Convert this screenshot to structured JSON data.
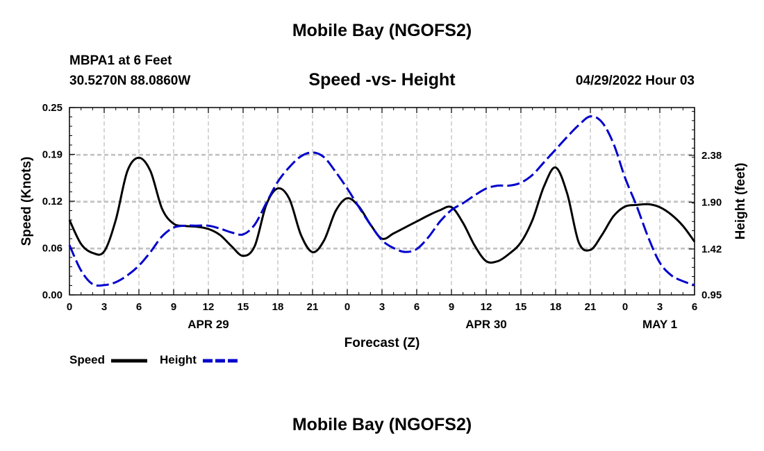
{
  "header": {
    "title": "Mobile Bay (NGOFS2)",
    "station": "MBPA1 at 6 Feet",
    "coordinates": "30.5270N  88.0860W",
    "subtitle": "Speed -vs- Height",
    "datetime": "04/29/2022 Hour 03"
  },
  "footer": {
    "title": "Mobile Bay (NGOFS2)"
  },
  "legend": {
    "speed_label": "Speed",
    "height_label": "Height"
  },
  "colors": {
    "speed": "#000000",
    "height": "#0000cc",
    "grid": "#bbbbbb"
  },
  "chart_data": {
    "type": "line",
    "title": "Speed -vs- Height",
    "xlabel": "Forecast (Z)",
    "ylabel": "Speed (Knots)",
    "y2label": "Height (feet)",
    "x_hours_range": [
      0,
      54
    ],
    "x_ticks": [
      {
        "h": 0,
        "label": "0"
      },
      {
        "h": 3,
        "label": "3"
      },
      {
        "h": 6,
        "label": "6"
      },
      {
        "h": 9,
        "label": "9"
      },
      {
        "h": 12,
        "label": "12"
      },
      {
        "h": 15,
        "label": "15"
      },
      {
        "h": 18,
        "label": "18"
      },
      {
        "h": 21,
        "label": "21"
      },
      {
        "h": 24,
        "label": "0"
      },
      {
        "h": 27,
        "label": "3"
      },
      {
        "h": 30,
        "label": "6"
      },
      {
        "h": 33,
        "label": "9"
      },
      {
        "h": 36,
        "label": "12"
      },
      {
        "h": 39,
        "label": "15"
      },
      {
        "h": 42,
        "label": "18"
      },
      {
        "h": 45,
        "label": "21"
      },
      {
        "h": 48,
        "label": "0"
      },
      {
        "h": 51,
        "label": "3"
      },
      {
        "h": 54,
        "label": "6"
      }
    ],
    "day_labels": [
      {
        "h": 12,
        "label": "APR 29"
      },
      {
        "h": 36,
        "label": "APR 30"
      },
      {
        "h": 51,
        "label": "MAY 1"
      }
    ],
    "ylim": [
      0,
      0.25
    ],
    "y_ticks": [
      {
        "v": 0.0,
        "label": "0.00"
      },
      {
        "v": 0.0625,
        "label": "0.06"
      },
      {
        "v": 0.125,
        "label": "0.12"
      },
      {
        "v": 0.1875,
        "label": "0.19"
      },
      {
        "v": 0.25,
        "label": "0.25"
      }
    ],
    "y2lim": [
      0.95,
      2.87
    ],
    "y2_ticks": [
      {
        "v": 0.95,
        "label": "0.95"
      },
      {
        "v": 1.42,
        "label": "1.42"
      },
      {
        "v": 1.9,
        "label": "1.90"
      },
      {
        "v": 2.38,
        "label": "2.38"
      }
    ],
    "grid": true,
    "legend_position": "bottom-left",
    "series": [
      {
        "name": "Speed",
        "axis": "left",
        "style": "solid",
        "x": [
          0,
          1,
          2,
          3,
          4,
          5,
          6,
          7,
          8,
          9,
          10,
          11,
          12,
          13,
          14,
          15,
          16,
          17,
          18,
          19,
          20,
          21,
          22,
          23,
          24,
          25,
          26,
          27,
          28,
          29,
          30,
          31,
          32,
          33,
          34,
          35,
          36,
          37,
          38,
          39,
          40,
          41,
          42,
          43,
          44,
          45,
          46,
          47,
          48,
          49,
          50,
          51,
          52,
          53,
          54
        ],
        "y": [
          0.1,
          0.068,
          0.056,
          0.058,
          0.1,
          0.165,
          0.183,
          0.165,
          0.115,
          0.095,
          0.092,
          0.091,
          0.088,
          0.08,
          0.065,
          0.052,
          0.065,
          0.12,
          0.142,
          0.128,
          0.08,
          0.057,
          0.073,
          0.112,
          0.129,
          0.118,
          0.094,
          0.075,
          0.082,
          0.09,
          0.098,
          0.106,
          0.113,
          0.117,
          0.096,
          0.066,
          0.045,
          0.045,
          0.055,
          0.07,
          0.1,
          0.145,
          0.17,
          0.135,
          0.07,
          0.06,
          0.08,
          0.105,
          0.118,
          0.12,
          0.121,
          0.117,
          0.107,
          0.092,
          0.071
        ]
      },
      {
        "name": "Height",
        "axis": "right",
        "style": "dashed",
        "x": [
          0,
          1,
          2,
          3,
          4,
          5,
          6,
          7,
          8,
          9,
          10,
          11,
          12,
          13,
          14,
          15,
          16,
          17,
          18,
          19,
          20,
          21,
          22,
          23,
          24,
          25,
          26,
          27,
          28,
          29,
          30,
          31,
          32,
          33,
          34,
          35,
          36,
          37,
          38,
          39,
          40,
          41,
          42,
          43,
          44,
          45,
          46,
          47,
          48,
          49,
          50,
          51,
          52,
          53,
          54
        ],
        "y": [
          1.46,
          1.2,
          1.06,
          1.05,
          1.08,
          1.15,
          1.25,
          1.39,
          1.55,
          1.64,
          1.66,
          1.66,
          1.66,
          1.63,
          1.59,
          1.57,
          1.67,
          1.89,
          2.11,
          2.26,
          2.37,
          2.41,
          2.36,
          2.21,
          2.04,
          1.85,
          1.67,
          1.51,
          1.43,
          1.39,
          1.42,
          1.54,
          1.7,
          1.82,
          1.89,
          1.97,
          2.04,
          2.07,
          2.07,
          2.1,
          2.18,
          2.31,
          2.44,
          2.57,
          2.69,
          2.78,
          2.72,
          2.5,
          2.15,
          1.86,
          1.54,
          1.28,
          1.15,
          1.09,
          1.05
        ]
      }
    ]
  }
}
